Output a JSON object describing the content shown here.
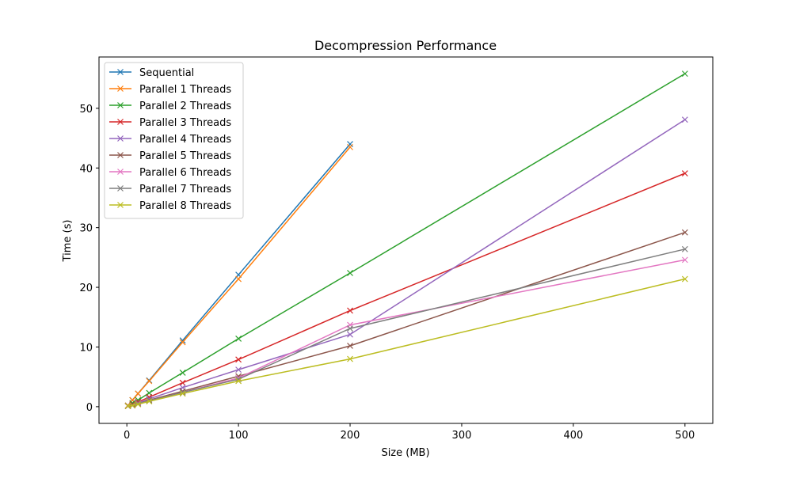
{
  "chart_data": {
    "type": "line",
    "title": "Decompression Performance",
    "xlabel": "Size (MB)",
    "ylabel": "Time (s)",
    "xlim": [
      -24.95,
      524.95
    ],
    "ylim": [
      -2.8,
      58.6
    ],
    "xticks": [
      0,
      100,
      200,
      300,
      400,
      500
    ],
    "yticks": [
      0,
      10,
      20,
      30,
      40,
      50
    ],
    "grid": false,
    "legend_position": "top-left",
    "marker": "x",
    "series": [
      {
        "name": "Sequential",
        "color": "#1f77b4",
        "x": [
          1,
          5,
          10,
          20,
          50,
          100,
          200
        ],
        "y": [
          0.2,
          1.1,
          2.2,
          4.4,
          11.1,
          22.1,
          44.0
        ]
      },
      {
        "name": "Parallel 1 Threads",
        "color": "#ff7f0e",
        "x": [
          1,
          5,
          10,
          20,
          50,
          100,
          200
        ],
        "y": [
          0.2,
          1.1,
          2.2,
          4.3,
          10.8,
          21.4,
          43.5
        ]
      },
      {
        "name": "Parallel 2 Threads",
        "color": "#2ca02c",
        "x": [
          1,
          5,
          10,
          20,
          50,
          100,
          200,
          500
        ],
        "y": [
          0.1,
          0.6,
          1.1,
          2.3,
          5.7,
          11.4,
          22.4,
          55.8
        ]
      },
      {
        "name": "Parallel 3 Threads",
        "color": "#d62728",
        "x": [
          1,
          5,
          10,
          20,
          50,
          100,
          200,
          500
        ],
        "y": [
          0.1,
          0.4,
          0.8,
          1.6,
          4.0,
          7.9,
          16.1,
          39.1
        ]
      },
      {
        "name": "Parallel 4 Threads",
        "color": "#9467bd",
        "x": [
          1,
          5,
          10,
          20,
          50,
          100,
          200,
          500
        ],
        "y": [
          0.1,
          0.3,
          0.6,
          1.3,
          3.2,
          6.2,
          12.1,
          48.1
        ]
      },
      {
        "name": "Parallel 5 Threads",
        "color": "#8c564b",
        "x": [
          1,
          5,
          10,
          20,
          50,
          100,
          200,
          500
        ],
        "y": [
          0.1,
          0.3,
          0.5,
          1.1,
          2.6,
          5.1,
          10.2,
          29.2
        ]
      },
      {
        "name": "Parallel 6 Threads",
        "color": "#e377c2",
        "x": [
          1,
          5,
          10,
          20,
          50,
          100,
          200,
          500
        ],
        "y": [
          0.1,
          0.2,
          0.5,
          1.0,
          2.4,
          4.8,
          13.7,
          24.6
        ]
      },
      {
        "name": "Parallel 7 Threads",
        "color": "#7f7f7f",
        "x": [
          1,
          5,
          10,
          20,
          50,
          100,
          200,
          500
        ],
        "y": [
          0.1,
          0.2,
          0.5,
          1.0,
          2.4,
          4.6,
          13.1,
          26.4
        ]
      },
      {
        "name": "Parallel 8 Threads",
        "color": "#bcbd22",
        "x": [
          1,
          5,
          10,
          20,
          50,
          100,
          200,
          500
        ],
        "y": [
          0.1,
          0.2,
          0.4,
          0.9,
          2.2,
          4.3,
          8.0,
          21.4
        ]
      }
    ]
  }
}
